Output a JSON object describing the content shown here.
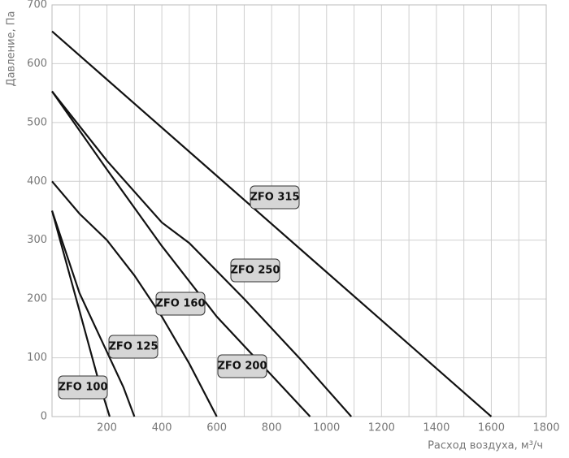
{
  "chart_data": {
    "type": "line",
    "ylabel": "Давление, Па",
    "xlabel": "Расход воздуха, м³/ч",
    "xlim": [
      0,
      1800
    ],
    "ylim": [
      0,
      700
    ],
    "xticks": [
      200,
      400,
      600,
      800,
      1000,
      1200,
      1400,
      1600,
      1800
    ],
    "xminor": [
      100,
      300,
      500,
      700,
      900,
      1100,
      1300,
      1500,
      1700
    ],
    "yticks": [
      0,
      100,
      200,
      300,
      400,
      500,
      600,
      700
    ],
    "grid": true,
    "series": [
      {
        "name": "ZFO 315",
        "color": "#111111",
        "x": [
          0,
          1600
        ],
        "values": [
          655,
          0
        ]
      },
      {
        "name": "ZFO 250",
        "color": "#111111",
        "x": [
          0,
          200,
          400,
          500,
          700,
          900,
          1090
        ],
        "values": [
          553,
          435,
          330,
          295,
          200,
          100,
          0
        ]
      },
      {
        "name": "ZFO 200",
        "color": "#111111",
        "x": [
          0,
          200,
          400,
          600,
          800,
          940
        ],
        "values": [
          553,
          420,
          290,
          170,
          70,
          0
        ]
      },
      {
        "name": "ZFO 160",
        "color": "#111111",
        "x": [
          0,
          100,
          200,
          300,
          400,
          500,
          600
        ],
        "values": [
          400,
          345,
          300,
          240,
          170,
          90,
          0
        ]
      },
      {
        "name": "ZFO 125",
        "color": "#111111",
        "x": [
          0,
          100,
          200,
          260,
          300
        ],
        "values": [
          350,
          210,
          110,
          50,
          0
        ]
      },
      {
        "name": "ZFO 100",
        "color": "#111111",
        "x": [
          0,
          100,
          170,
          210
        ],
        "values": [
          350,
          180,
          60,
          0
        ]
      }
    ]
  }
}
